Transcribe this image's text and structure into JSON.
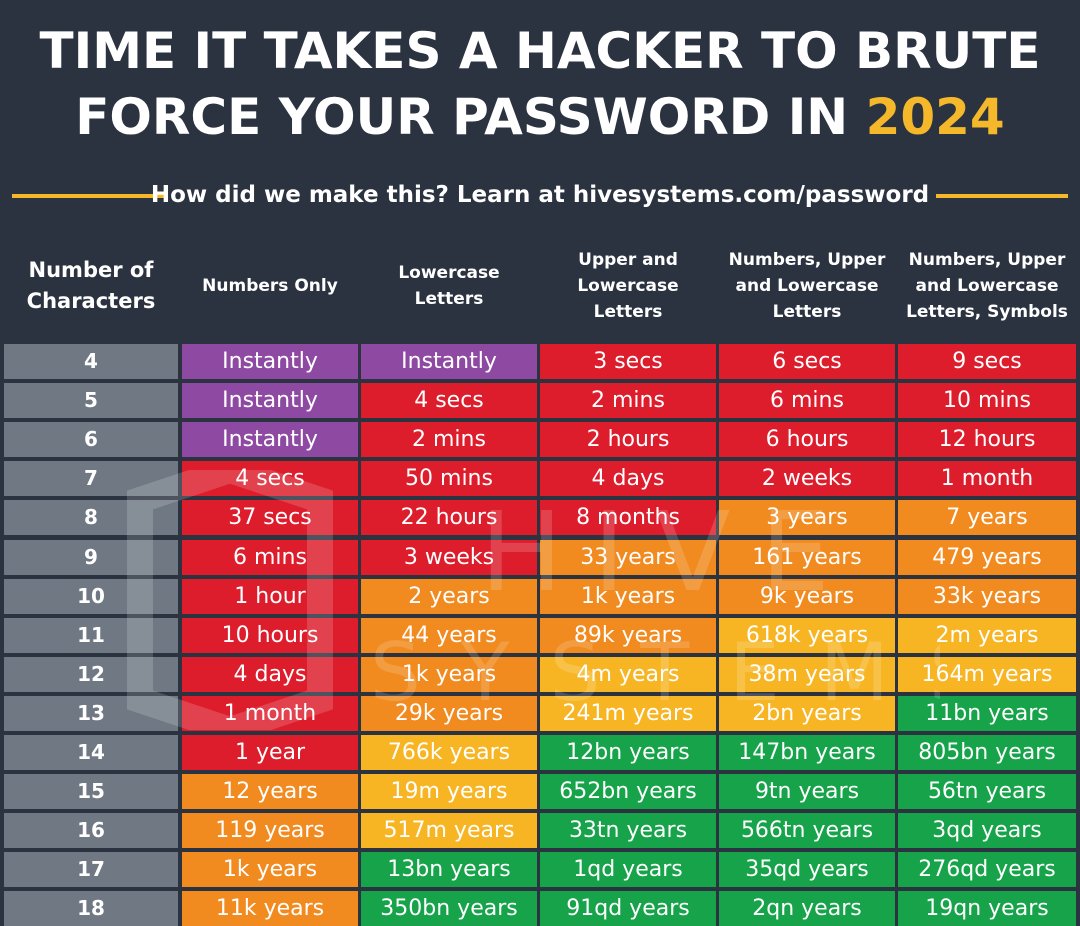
{
  "title_line1": "TIME IT TAKES A HACKER TO BRUTE",
  "title_line2_prefix": "FORCE YOUR PASSWORD IN ",
  "title_year": "2024",
  "subtitle": "How did we make this? Learn at hivesystems.com/password",
  "watermark": [
    "HIVE",
    "SYSTEMS"
  ],
  "colors": {
    "background": "#2b3340",
    "accent": "#f5b82a",
    "row_label": "#6f7883",
    "instantly": "#8e4aa3",
    "seconds_to_hours": "#dd1c2c",
    "days_to_weeks": "#dd1c2c",
    "years_short": "#f18a1f",
    "years_mid": "#f7b524",
    "years_long": "#16a34a"
  },
  "chart_data": {
    "type": "table",
    "columns": [
      "Number of Characters",
      "Numbers Only",
      "Lowercase Letters",
      "Upper and Lowercase Letters",
      "Numbers, Upper and Lowercase Letters",
      "Numbers, Upper and Lowercase Letters, Symbols"
    ],
    "rows": [
      {
        "characters": "4",
        "values": [
          "Instantly",
          "Instantly",
          "3 secs",
          "6 secs",
          "9 secs"
        ],
        "colors": [
          "purple",
          "purple",
          "red",
          "red",
          "red"
        ]
      },
      {
        "characters": "5",
        "values": [
          "Instantly",
          "4 secs",
          "2 mins",
          "6 mins",
          "10 mins"
        ],
        "colors": [
          "purple",
          "red",
          "red",
          "red",
          "red"
        ]
      },
      {
        "characters": "6",
        "values": [
          "Instantly",
          "2 mins",
          "2 hours",
          "6 hours",
          "12 hours"
        ],
        "colors": [
          "purple",
          "red",
          "red",
          "red",
          "red"
        ]
      },
      {
        "characters": "7",
        "values": [
          "4 secs",
          "50 mins",
          "4 days",
          "2 weeks",
          "1 month"
        ],
        "colors": [
          "red",
          "red",
          "red",
          "red",
          "red"
        ]
      },
      {
        "characters": "8",
        "values": [
          "37 secs",
          "22 hours",
          "8 months",
          "3 years",
          "7 years"
        ],
        "colors": [
          "red",
          "red",
          "red",
          "orange",
          "orange"
        ]
      },
      {
        "characters": "9",
        "values": [
          "6 mins",
          "3 weeks",
          "33 years",
          "161 years",
          "479 years"
        ],
        "colors": [
          "red",
          "red",
          "orange",
          "orange",
          "orange"
        ]
      },
      {
        "characters": "10",
        "values": [
          "1 hour",
          "2 years",
          "1k years",
          "9k years",
          "33k years"
        ],
        "colors": [
          "red",
          "orange",
          "orange",
          "orange",
          "orange"
        ]
      },
      {
        "characters": "11",
        "values": [
          "10 hours",
          "44 years",
          "89k years",
          "618k years",
          "2m years"
        ],
        "colors": [
          "red",
          "orange",
          "orange",
          "yellow",
          "yellow"
        ]
      },
      {
        "characters": "12",
        "values": [
          "4 days",
          "1k years",
          "4m years",
          "38m years",
          "164m years"
        ],
        "colors": [
          "red",
          "orange",
          "yellow",
          "yellow",
          "yellow"
        ]
      },
      {
        "characters": "13",
        "values": [
          "1 month",
          "29k years",
          "241m years",
          "2bn years",
          "11bn years"
        ],
        "colors": [
          "red",
          "orange",
          "yellow",
          "yellow",
          "green"
        ]
      },
      {
        "characters": "14",
        "values": [
          "1 year",
          "766k years",
          "12bn years",
          "147bn years",
          "805bn years"
        ],
        "colors": [
          "red",
          "yellow",
          "green",
          "green",
          "green"
        ]
      },
      {
        "characters": "15",
        "values": [
          "12 years",
          "19m years",
          "652bn years",
          "9tn years",
          "56tn years"
        ],
        "colors": [
          "orange",
          "yellow",
          "green",
          "green",
          "green"
        ]
      },
      {
        "characters": "16",
        "values": [
          "119 years",
          "517m years",
          "33tn years",
          "566tn years",
          "3qd years"
        ],
        "colors": [
          "orange",
          "yellow",
          "green",
          "green",
          "green"
        ]
      },
      {
        "characters": "17",
        "values": [
          "1k years",
          "13bn years",
          "1qd years",
          "35qd years",
          "276qd years"
        ],
        "colors": [
          "orange",
          "green",
          "green",
          "green",
          "green"
        ]
      },
      {
        "characters": "18",
        "values": [
          "11k years",
          "350bn years",
          "91qd years",
          "2qn years",
          "19qn years"
        ],
        "colors": [
          "orange",
          "green",
          "green",
          "green",
          "green"
        ]
      }
    ]
  },
  "palette": {
    "purple": "#8e4aa3",
    "red": "#dd1c2c",
    "orange": "#f18a1f",
    "yellow": "#f7b524",
    "green": "#16a34a"
  }
}
